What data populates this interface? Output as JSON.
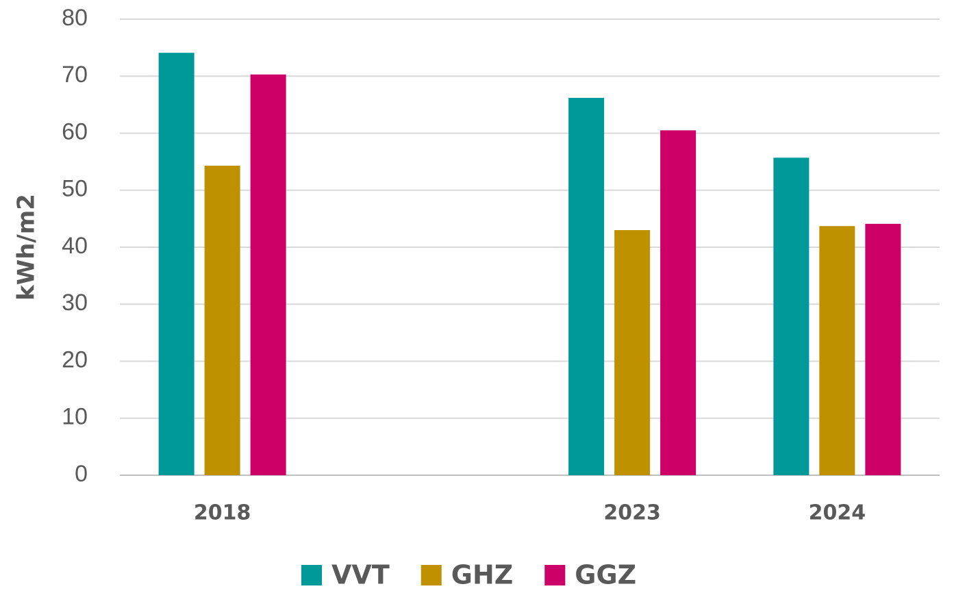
{
  "chart_data": {
    "type": "bar",
    "ylabel": "kWh/m2",
    "categories": [
      "2018",
      null,
      "2023",
      "2024"
    ],
    "series": [
      {
        "name": "VVT",
        "color": "#009999",
        "values": [
          74.1,
          null,
          66.2,
          55.7
        ]
      },
      {
        "name": "GHZ",
        "color": "#bf9000",
        "values": [
          54.3,
          null,
          43.0,
          43.7
        ]
      },
      {
        "name": "GGZ",
        "color": "#cc0066",
        "values": [
          70.3,
          null,
          60.5,
          44.1
        ]
      }
    ],
    "ylim": [
      0,
      80
    ],
    "yticks": [
      0,
      10,
      20,
      30,
      40,
      50,
      60,
      70,
      80
    ],
    "grid": true,
    "legend": "bottom"
  }
}
